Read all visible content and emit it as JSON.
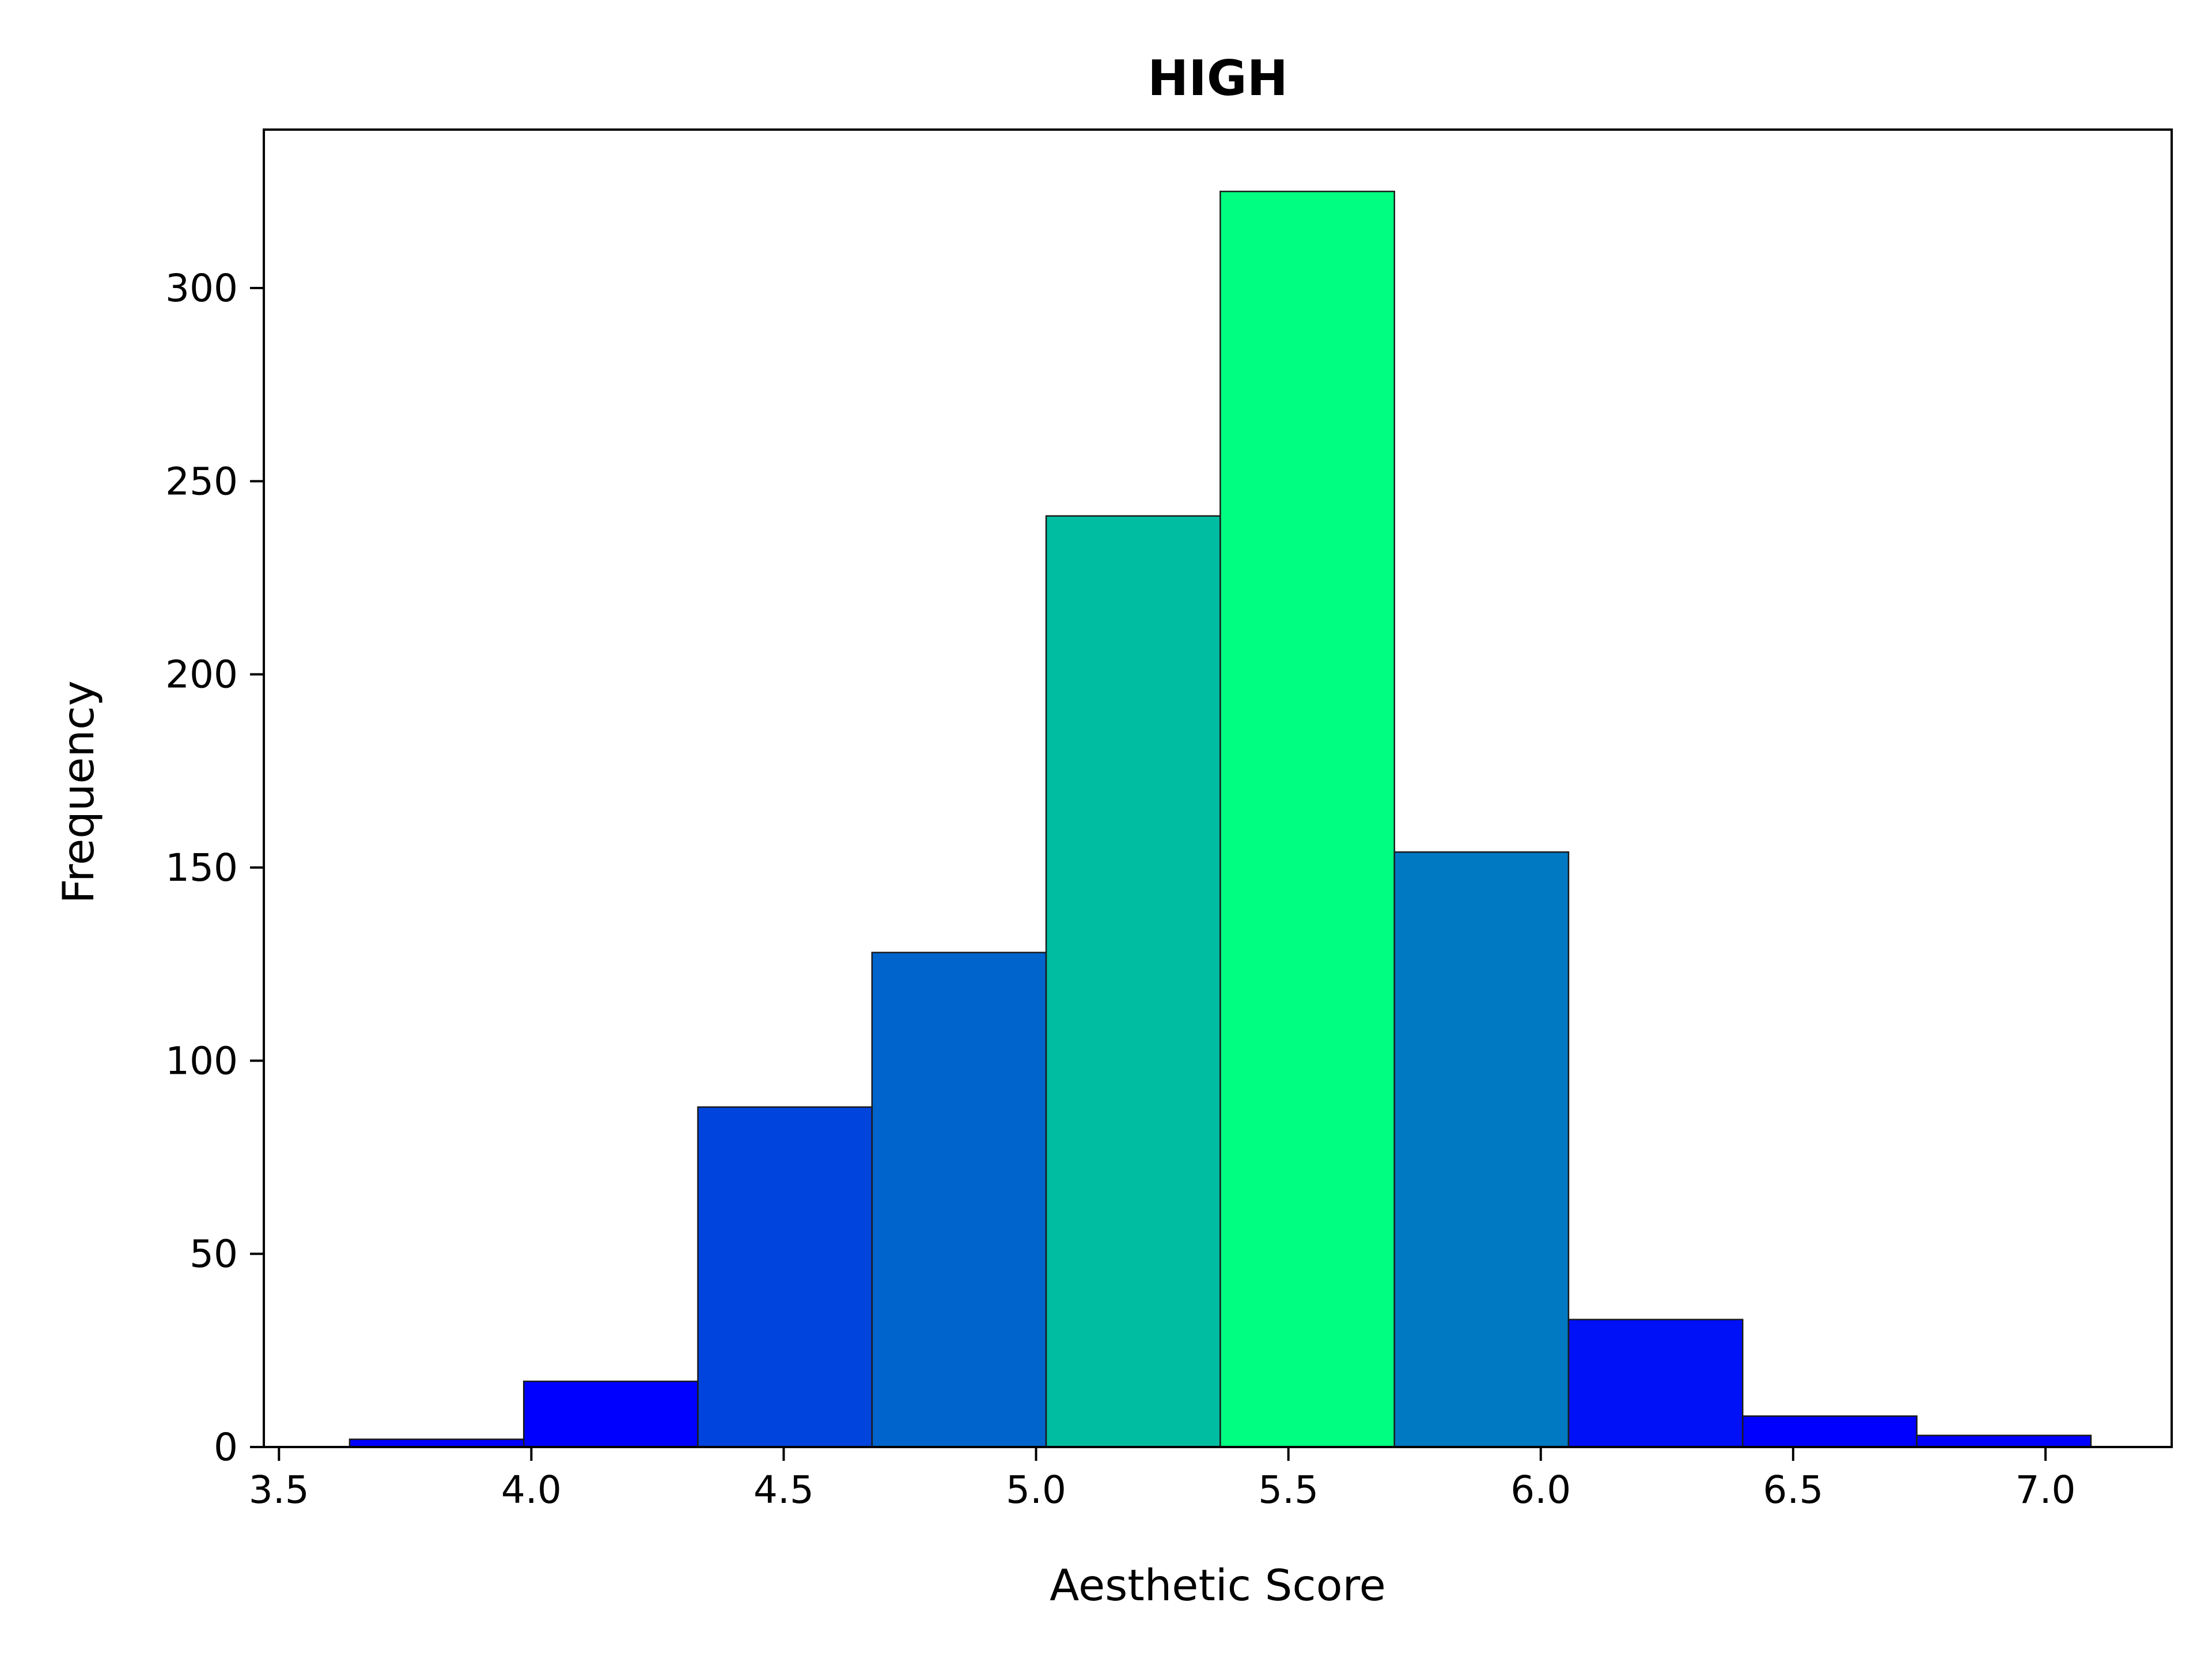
{
  "chart_data": {
    "type": "bar",
    "title": "HIGH",
    "xlabel": "Aesthetic Score",
    "ylabel": "Frequency",
    "xlim": [
      3.47,
      7.25
    ],
    "ylim": [
      0,
      341
    ],
    "grid": false,
    "legend": "none",
    "bins": [
      {
        "x0": 3.64,
        "x1": 3.985,
        "count": 2,
        "color": "#0000ff"
      },
      {
        "x0": 3.985,
        "x1": 4.33,
        "count": 17,
        "color": "#0000ff"
      },
      {
        "x0": 4.33,
        "x1": 4.675,
        "count": 88,
        "color": "#0044de"
      },
      {
        "x0": 4.675,
        "x1": 5.02,
        "count": 128,
        "color": "#0064cd"
      },
      {
        "x0": 5.02,
        "x1": 5.365,
        "count": 241,
        "color": "#00bca1"
      },
      {
        "x0": 5.365,
        "x1": 5.71,
        "count": 325,
        "color": "#00ff80"
      },
      {
        "x0": 5.71,
        "x1": 6.055,
        "count": 154,
        "color": "#0079c3"
      },
      {
        "x0": 6.055,
        "x1": 6.4,
        "count": 33,
        "color": "#0010f7"
      },
      {
        "x0": 6.4,
        "x1": 6.745,
        "count": 8,
        "color": "#0000ff"
      },
      {
        "x0": 6.745,
        "x1": 7.09,
        "count": 3,
        "color": "#0000ff"
      }
    ],
    "xticks": [
      {
        "value": 3.5,
        "label": "3.5"
      },
      {
        "value": 4.0,
        "label": "4.0"
      },
      {
        "value": 4.5,
        "label": "4.5"
      },
      {
        "value": 5.0,
        "label": "5.0"
      },
      {
        "value": 5.5,
        "label": "5.5"
      },
      {
        "value": 6.0,
        "label": "6.0"
      },
      {
        "value": 6.5,
        "label": "6.5"
      },
      {
        "value": 7.0,
        "label": "7.0"
      }
    ],
    "yticks": [
      {
        "value": 0,
        "label": "0"
      },
      {
        "value": 50,
        "label": "50"
      },
      {
        "value": 100,
        "label": "100"
      },
      {
        "value": 150,
        "label": "150"
      },
      {
        "value": 200,
        "label": "200"
      },
      {
        "value": 250,
        "label": "250"
      },
      {
        "value": 300,
        "label": "300"
      }
    ]
  }
}
